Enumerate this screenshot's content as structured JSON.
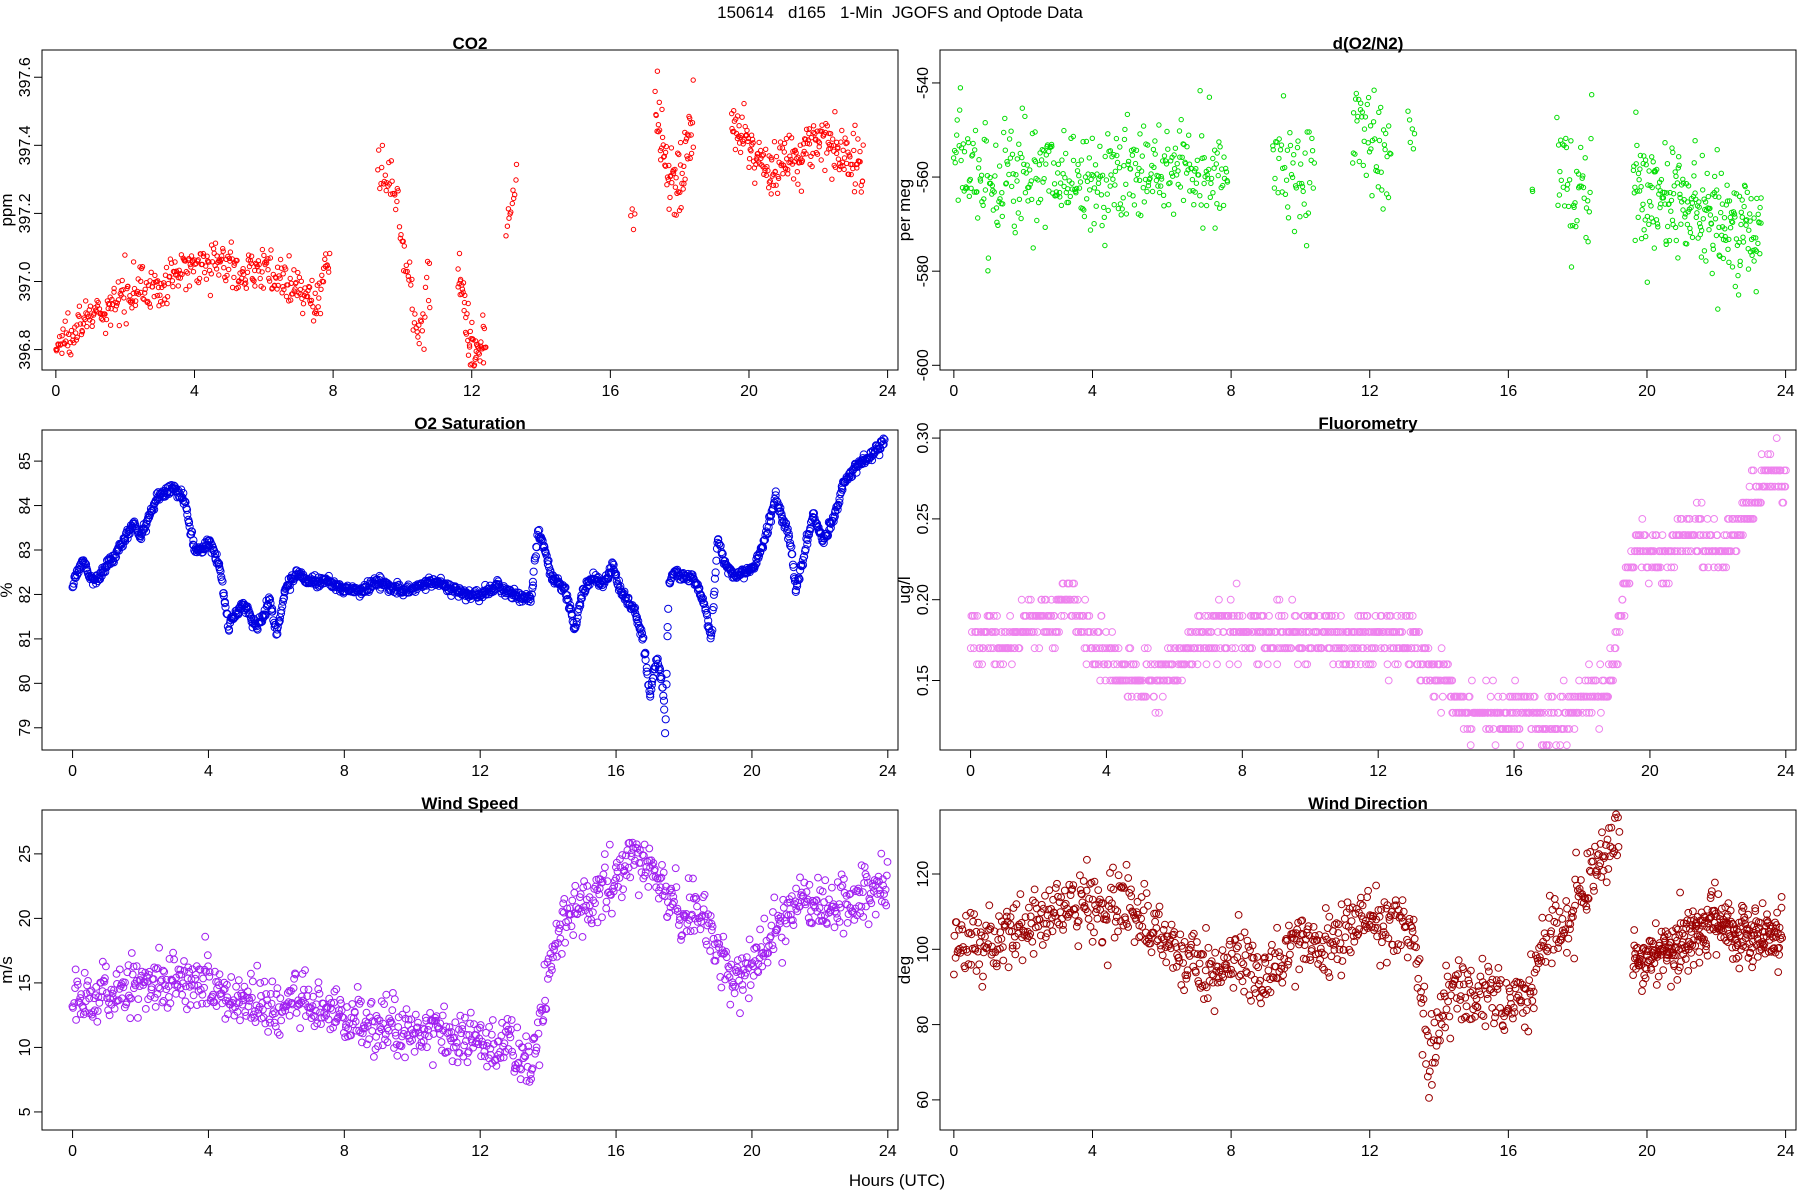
{
  "page": {
    "title": "150614   d165   1-Min  JGOFS and Optode Data",
    "xlabel": "Hours (UTC)"
  },
  "chart_data": [
    {
      "type": "scatter",
      "id": "co2",
      "title": "CO2",
      "ylabel": "ppm",
      "xlabel": "",
      "color": "#ff0000",
      "marker_size": 2.2,
      "xlim": [
        -0.4,
        24.3
      ],
      "ylim": [
        396.74,
        397.68
      ],
      "xticks": [
        0,
        4,
        8,
        12,
        16,
        20,
        24
      ],
      "yticks": [
        396.8,
        397.0,
        397.2,
        397.4,
        397.6
      ],
      "ytick_labels": [
        "396.8",
        "397.0",
        "397.2",
        "397.4",
        "397.6"
      ],
      "ytick_rotated": true,
      "grid": false,
      "segments": [
        {
          "x": [
            0.0,
            0.5,
            1.0,
            1.5,
            2.0,
            2.5,
            3.0,
            3.5,
            4.0,
            4.5,
            5.0,
            5.5,
            6.0,
            6.5,
            7.0,
            7.5,
            7.9
          ],
          "y": [
            396.8,
            396.87,
            396.9,
            396.9,
            396.98,
            396.99,
            396.97,
            397.02,
            397.06,
            397.06,
            397.05,
            397.02,
            397.05,
            397.0,
            396.97,
            396.93,
            397.1
          ],
          "noise": 0.03,
          "count": 380
        },
        {
          "x": [
            9.3,
            9.6,
            9.9,
            10.2,
            10.5,
            10.8
          ],
          "y": [
            397.3,
            397.32,
            397.2,
            397.0,
            396.85,
            397.0
          ],
          "noise": 0.04,
          "count": 60
        },
        {
          "x": [
            11.6,
            11.9,
            12.2,
            12.4
          ],
          "y": [
            397.05,
            396.85,
            396.78,
            396.82
          ],
          "noise": 0.04,
          "count": 55
        },
        {
          "x": [
            13.0,
            13.3
          ],
          "y": [
            397.15,
            397.3
          ],
          "noise": 0.02,
          "count": 12
        },
        {
          "x": [
            16.6,
            16.7
          ],
          "y": [
            397.2,
            397.2
          ],
          "noise": 0.03,
          "count": 4
        },
        {
          "x": [
            17.3,
            17.7,
            18.1,
            18.4
          ],
          "y": [
            397.5,
            397.25,
            397.35,
            397.45
          ],
          "noise": 0.06,
          "count": 70
        },
        {
          "x": [
            19.5,
            20.0,
            20.5,
            21.0,
            21.5,
            22.0,
            22.5,
            23.0,
            23.3
          ],
          "y": [
            397.45,
            397.4,
            397.33,
            397.35,
            397.38,
            397.42,
            397.38,
            397.35,
            397.34
          ],
          "noise": 0.04,
          "count": 220
        }
      ]
    },
    {
      "type": "scatter",
      "id": "do2n2",
      "title": "d(O2/N2)",
      "ylabel": "per meg",
      "xlabel": "",
      "color": "#00dd00",
      "marker_size": 2.2,
      "xlim": [
        -0.4,
        24.3
      ],
      "ylim": [
        -601,
        -533
      ],
      "xticks": [
        0,
        4,
        8,
        12,
        16,
        20,
        24
      ],
      "yticks": [
        -600,
        -580,
        -560,
        -540
      ],
      "ytick_labels": [
        "-600",
        "-580",
        "-560",
        "-540"
      ],
      "ytick_rotated": true,
      "grid": false,
      "segments": [
        {
          "x": [
            0.0,
            1.0,
            2.0,
            3.0,
            4.0,
            5.0,
            6.0,
            7.0,
            7.9
          ],
          "y": [
            -555,
            -562,
            -558,
            -560,
            -562,
            -560,
            -558,
            -558,
            -556
          ],
          "noise": 6,
          "count": 380
        },
        {
          "x": [
            9.2,
            9.8,
            10.4
          ],
          "y": [
            -555,
            -560,
            -560
          ],
          "noise": 6,
          "count": 50
        },
        {
          "x": [
            11.5,
            12.0,
            12.6
          ],
          "y": [
            -550,
            -552,
            -558
          ],
          "noise": 6,
          "count": 50
        },
        {
          "x": [
            13.1,
            13.3
          ],
          "y": [
            -550,
            -550
          ],
          "noise": 3,
          "count": 6
        },
        {
          "x": [
            16.7
          ],
          "y": [
            -563
          ],
          "noise": 1,
          "count": 2
        },
        {
          "x": [
            17.4,
            17.9,
            18.4
          ],
          "y": [
            -558,
            -565,
            -558
          ],
          "noise": 8,
          "count": 45
        },
        {
          "x": [
            19.6,
            20.5,
            21.5,
            22.5,
            23.3
          ],
          "y": [
            -562,
            -565,
            -568,
            -570,
            -574
          ],
          "noise": 6,
          "count": 240
        }
      ]
    },
    {
      "type": "scatter",
      "id": "o2sat",
      "title": "O2 Saturation",
      "ylabel": "%",
      "xlabel": "",
      "color": "#0000e0",
      "marker_size": 3.6,
      "xlim": [
        -0.9,
        24.3
      ],
      "ylim": [
        78.5,
        85.7
      ],
      "xticks": [
        0,
        4,
        8,
        12,
        16,
        20,
        24
      ],
      "yticks": [
        79,
        80,
        81,
        82,
        83,
        84,
        85
      ],
      "ytick_labels": [
        "79",
        "80",
        "81",
        "82",
        "83",
        "84",
        "85"
      ],
      "ytick_rotated": true,
      "grid": false,
      "segments": [
        {
          "x": [
            0.0,
            0.3,
            0.6,
            1.0,
            1.5,
            1.8,
            2.0,
            2.5,
            3.0,
            3.3,
            3.6,
            3.8,
            4.0,
            4.3,
            4.6,
            5.0,
            5.4,
            5.6,
            5.8,
            6.0,
            6.3,
            6.6,
            7.0,
            7.5,
            8.0,
            8.5,
            9.0,
            9.5,
            10.0,
            10.5,
            11.0,
            11.5,
            12.0,
            12.5,
            13.0,
            13.5,
            13.7,
            13.9,
            14.1,
            14.5,
            14.8,
            15.0,
            15.3,
            15.6,
            15.9,
            16.2,
            16.5,
            16.8,
            17.0,
            17.2,
            17.4,
            17.45,
            17.55,
            17.7,
            18.0,
            18.3,
            18.6,
            18.8,
            19.0,
            19.2,
            19.5,
            19.8,
            20.1,
            20.4,
            20.7,
            20.9,
            21.1,
            21.3,
            21.5,
            21.8,
            22.1,
            22.4,
            22.7,
            23.0,
            23.3,
            23.6,
            23.9
          ],
          "y": [
            82.2,
            82.8,
            82.3,
            82.6,
            83.2,
            83.6,
            83.3,
            84.2,
            84.4,
            84.1,
            83.0,
            83.0,
            83.2,
            82.7,
            81.3,
            81.8,
            81.3,
            81.5,
            81.9,
            81.1,
            82.2,
            82.5,
            82.3,
            82.3,
            82.1,
            82.1,
            82.3,
            82.1,
            82.1,
            82.3,
            82.2,
            82.0,
            82.0,
            82.2,
            82.0,
            81.9,
            83.4,
            83.0,
            82.4,
            82.1,
            81.2,
            82.0,
            82.4,
            82.2,
            82.6,
            82.0,
            81.7,
            81.0,
            79.7,
            80.6,
            79.8,
            78.8,
            82.2,
            82.5,
            82.4,
            82.4,
            81.8,
            81.0,
            83.3,
            82.7,
            82.4,
            82.5,
            82.7,
            83.3,
            84.2,
            83.7,
            83.3,
            82.1,
            82.8,
            83.8,
            83.2,
            83.7,
            84.5,
            84.8,
            85.0,
            85.2,
            85.5
          ],
          "noise": 0.06,
          "count": 1400
        }
      ]
    },
    {
      "type": "scatter",
      "id": "fluor",
      "title": "Fluorometry",
      "ylabel": "ug/l",
      "xlabel": "",
      "color": "#ee82ee",
      "marker_size": 3.4,
      "quantize": 0.01,
      "xlim": [
        -0.9,
        24.3
      ],
      "ylim": [
        0.107,
        0.305
      ],
      "xticks": [
        0,
        4,
        8,
        12,
        16,
        20,
        24
      ],
      "yticks": [
        0.15,
        0.2,
        0.25,
        0.3
      ],
      "ytick_labels": [
        "0.15",
        "0.20",
        "0.25",
        "0.30"
      ],
      "ytick_rotated": true,
      "grid": false,
      "segments": [
        {
          "x": [
            0.0,
            0.5,
            1.0,
            1.5,
            2.0,
            2.5,
            2.8,
            3.0,
            3.3,
            3.6,
            4.0,
            4.5,
            5.0,
            5.5,
            6.0,
            6.5,
            7.0,
            8.0,
            9.0,
            10.0,
            11.0,
            12.0,
            12.5,
            13.0,
            13.5,
            14.0,
            14.5,
            15.0,
            15.5,
            16.0,
            16.5,
            17.0,
            17.5,
            18.0,
            18.5,
            19.0,
            19.3,
            19.6,
            20.0,
            20.5,
            21.0,
            21.5,
            22.0,
            22.5,
            23.0,
            23.5,
            24.0
          ],
          "y": [
            0.18,
            0.175,
            0.17,
            0.18,
            0.185,
            0.19,
            0.205,
            0.2,
            0.185,
            0.17,
            0.165,
            0.155,
            0.15,
            0.15,
            0.16,
            0.17,
            0.18,
            0.18,
            0.18,
            0.18,
            0.175,
            0.175,
            0.18,
            0.17,
            0.155,
            0.145,
            0.13,
            0.13,
            0.13,
            0.13,
            0.13,
            0.12,
            0.13,
            0.14,
            0.14,
            0.16,
            0.22,
            0.23,
            0.23,
            0.22,
            0.24,
            0.24,
            0.23,
            0.24,
            0.26,
            0.28,
            0.27
          ],
          "noise": 0.008,
          "count": 1300
        }
      ]
    },
    {
      "type": "scatter",
      "id": "windspeed",
      "title": "Wind Speed",
      "ylabel": "m/s",
      "xlabel": "",
      "color": "#a020f0",
      "marker_size": 3.4,
      "xlim": [
        -0.9,
        24.3
      ],
      "ylim": [
        3.6,
        28.4
      ],
      "xticks": [
        0,
        4,
        8,
        12,
        16,
        20,
        24
      ],
      "yticks": [
        5,
        10,
        15,
        20,
        25
      ],
      "ytick_labels": [
        "5",
        "10",
        "15",
        "20",
        "25"
      ],
      "ytick_rotated": true,
      "grid": false,
      "segments": [
        {
          "x": [
            0.0,
            1.0,
            2.0,
            3.0,
            4.0,
            5.0,
            6.0,
            7.0,
            8.0,
            9.0,
            10.0,
            11.0,
            12.0,
            13.0,
            13.5,
            13.8,
            14.0,
            14.3,
            15.0,
            16.0,
            16.5,
            17.0,
            17.5,
            18.0,
            18.5,
            19.0,
            19.5,
            20.0,
            20.5,
            21.0,
            21.5,
            22.0,
            22.5,
            23.0,
            23.5,
            24.0
          ],
          "y": [
            14,
            14,
            15,
            15.5,
            15,
            13.5,
            13,
            13.5,
            12,
            11.5,
            11,
            11,
            10.5,
            10,
            8.5,
            12,
            16,
            19.5,
            21,
            23,
            24.5,
            24,
            21.5,
            20.5,
            20,
            18,
            15,
            16,
            18.5,
            20,
            22,
            21,
            21,
            21,
            22.5,
            22.5
          ],
          "noise": 1.1,
          "count": 1100
        }
      ]
    },
    {
      "type": "scatter",
      "id": "winddir",
      "title": "Wind Direction",
      "ylabel": "deg",
      "xlabel": "",
      "color": "#990000",
      "marker_size": 3.4,
      "xlim": [
        -0.4,
        24.3
      ],
      "ylim": [
        52,
        137
      ],
      "xticks": [
        0,
        4,
        8,
        12,
        16,
        20,
        24
      ],
      "yticks": [
        60,
        80,
        100,
        120
      ],
      "ytick_labels": [
        "60",
        "80",
        "100",
        "120"
      ],
      "ytick_rotated": true,
      "grid": false,
      "segments": [
        {
          "x": [
            0.0,
            1.0,
            2.0,
            3.0,
            4.0,
            5.0,
            5.5,
            6.0,
            6.5,
            7.0,
            7.5,
            8.0,
            8.5,
            9.0,
            9.5,
            10.0,
            10.5,
            11.0,
            11.5,
            12.0,
            12.5,
            13.0,
            13.3,
            13.5,
            13.7,
            13.9,
            14.2,
            14.6,
            15.0,
            15.5,
            16.0,
            16.5,
            17.0,
            17.5,
            18.0,
            18.5,
            19.0,
            19.2
          ],
          "y": [
            100,
            103,
            106,
            110,
            112,
            112,
            108,
            104,
            100,
            95,
            93,
            96,
            97,
            92,
            100,
            103,
            102,
            100,
            108,
            110,
            105,
            108,
            103,
            85,
            70,
            75,
            88,
            90,
            89,
            89,
            85,
            88,
            100,
            105,
            112,
            120,
            128,
            133
          ],
          "noise": 4.5,
          "count": 900
        },
        {
          "x": [
            19.6,
            20.0,
            20.5,
            21.0,
            21.5,
            22.0,
            22.5,
            23.0,
            23.5,
            23.9
          ],
          "y": [
            96,
            98,
            100,
            102,
            106,
            107,
            104,
            103,
            104,
            104
          ],
          "noise": 4.0,
          "count": 330
        }
      ]
    }
  ]
}
